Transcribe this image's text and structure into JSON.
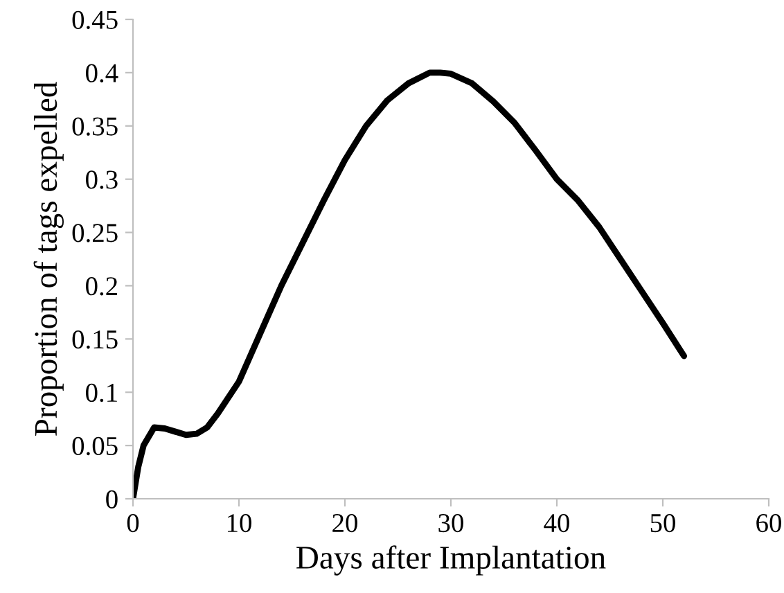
{
  "chart_data": {
    "type": "line",
    "xlabel": "Days after Implantation",
    "ylabel": "Proportion of tags expelled",
    "x": [
      0,
      0.5,
      1,
      2,
      3,
      4,
      5,
      6,
      7,
      8,
      10,
      12,
      14,
      16,
      18,
      20,
      22,
      24,
      26,
      28,
      29,
      30,
      32,
      34,
      36,
      38,
      40,
      42,
      44,
      46,
      48,
      50,
      52
    ],
    "series": [
      {
        "color": "#000000",
        "values": [
          0,
          0.03,
          0.05,
          0.067,
          0.066,
          0.063,
          0.06,
          0.061,
          0.067,
          0.08,
          0.11,
          0.155,
          0.2,
          0.24,
          0.28,
          0.318,
          0.35,
          0.374,
          0.39,
          0.4,
          0.4,
          0.399,
          0.39,
          0.373,
          0.353,
          0.327,
          0.3,
          0.28,
          0.255,
          0.225,
          0.195,
          0.165,
          0.134
        ]
      }
    ],
    "xlim": [
      0,
      60
    ],
    "xticks": [
      0,
      10,
      20,
      30,
      40,
      50,
      60
    ],
    "ylim": [
      0,
      0.45
    ],
    "yticks": [
      0,
      0.05,
      0.1,
      0.15,
      0.2,
      0.25,
      0.3,
      0.35,
      0.4,
      0.45
    ],
    "grid": false,
    "legend": false,
    "marker": "none",
    "line_style": "solid"
  }
}
